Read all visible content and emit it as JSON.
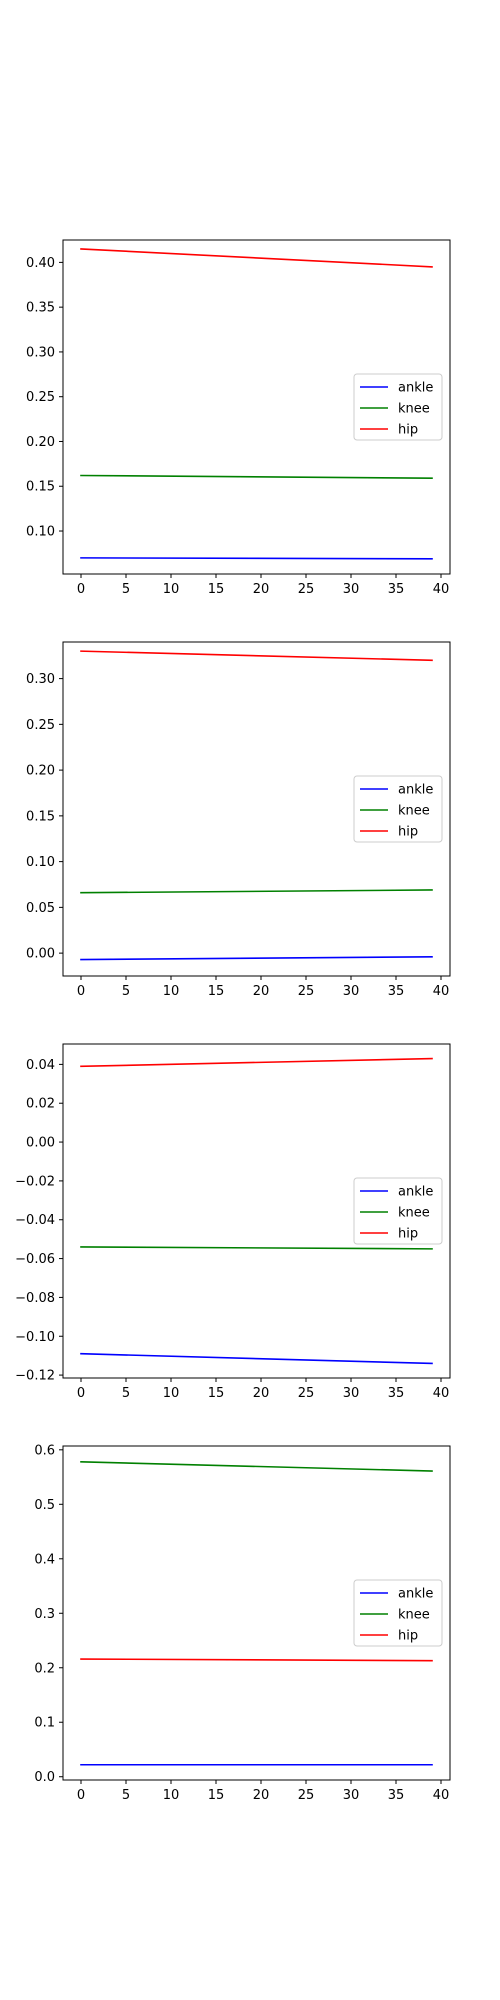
{
  "colors": {
    "ankle": "#0000ff",
    "knee": "#008000",
    "hip": "#ff0000",
    "axes": "#000000",
    "legend_border": "#cccccc",
    "background": "#ffffff"
  },
  "chart_data": [
    {
      "type": "line",
      "x_range": [
        0,
        39
      ],
      "xlim": [
        -2,
        41
      ],
      "ylim": [
        0.052,
        0.425
      ],
      "xticks": [
        0,
        5,
        10,
        15,
        20,
        25,
        30,
        35,
        40
      ],
      "xtick_labels": [
        "0",
        "5",
        "10",
        "15",
        "20",
        "25",
        "30",
        "35",
        "40"
      ],
      "yticks": [
        0.1,
        0.15,
        0.2,
        0.25,
        0.3,
        0.35,
        0.4
      ],
      "ytick_labels": [
        "0.10",
        "0.15",
        "0.20",
        "0.25",
        "0.30",
        "0.35",
        "0.40"
      ],
      "grid": false,
      "legend_position": "center-right",
      "series": [
        {
          "name": "ankle",
          "start": 0.07,
          "end": 0.069
        },
        {
          "name": "knee",
          "start": 0.162,
          "end": 0.159
        },
        {
          "name": "hip",
          "start": 0.415,
          "end": 0.395
        }
      ]
    },
    {
      "type": "line",
      "x_range": [
        0,
        39
      ],
      "xlim": [
        -2,
        41
      ],
      "ylim": [
        -0.025,
        0.34
      ],
      "xticks": [
        0,
        5,
        10,
        15,
        20,
        25,
        30,
        35,
        40
      ],
      "xtick_labels": [
        "0",
        "5",
        "10",
        "15",
        "20",
        "25",
        "30",
        "35",
        "40"
      ],
      "yticks": [
        0.0,
        0.05,
        0.1,
        0.15,
        0.2,
        0.25,
        0.3
      ],
      "ytick_labels": [
        "0.00",
        "0.05",
        "0.10",
        "0.15",
        "0.20",
        "0.25",
        "0.30"
      ],
      "grid": false,
      "legend_position": "center-right",
      "series": [
        {
          "name": "ankle",
          "start": -0.007,
          "end": -0.004
        },
        {
          "name": "knee",
          "start": 0.066,
          "end": 0.069
        },
        {
          "name": "hip",
          "start": 0.33,
          "end": 0.32
        }
      ]
    },
    {
      "type": "line",
      "x_range": [
        0,
        39
      ],
      "xlim": [
        -2,
        41
      ],
      "ylim": [
        -0.1215,
        0.0505
      ],
      "xticks": [
        0,
        5,
        10,
        15,
        20,
        25,
        30,
        35,
        40
      ],
      "xtick_labels": [
        "0",
        "5",
        "10",
        "15",
        "20",
        "25",
        "30",
        "35",
        "40"
      ],
      "yticks": [
        0.04,
        0.02,
        0.0,
        -0.02,
        -0.04,
        -0.06,
        -0.08,
        -0.1,
        -0.12
      ],
      "ytick_labels": [
        "0.04",
        "0.02",
        "0.00",
        "−0.02",
        "−0.04",
        "−0.06",
        "−0.08",
        "−0.10",
        "−0.12"
      ],
      "grid": false,
      "legend_position": "center-right",
      "series": [
        {
          "name": "ankle",
          "start": -0.109,
          "end": -0.114
        },
        {
          "name": "knee",
          "start": -0.054,
          "end": -0.055
        },
        {
          "name": "hip",
          "start": 0.039,
          "end": 0.043
        }
      ]
    },
    {
      "type": "line",
      "x_range": [
        0,
        39
      ],
      "xlim": [
        -2,
        41
      ],
      "ylim": [
        -0.006,
        0.607
      ],
      "xticks": [
        0,
        5,
        10,
        15,
        20,
        25,
        30,
        35,
        40
      ],
      "xtick_labels": [
        "0",
        "5",
        "10",
        "15",
        "20",
        "25",
        "30",
        "35",
        "40"
      ],
      "yticks": [
        0.0,
        0.1,
        0.2,
        0.3,
        0.4,
        0.5,
        0.6
      ],
      "ytick_labels": [
        "0.0",
        "0.1",
        "0.2",
        "0.3",
        "0.4",
        "0.5",
        "0.6"
      ],
      "grid": false,
      "legend_position": "center-right",
      "series": [
        {
          "name": "ankle",
          "start": 0.022,
          "end": 0.022
        },
        {
          "name": "knee",
          "start": 0.578,
          "end": 0.561
        },
        {
          "name": "hip",
          "start": 0.216,
          "end": 0.213
        }
      ]
    }
  ]
}
